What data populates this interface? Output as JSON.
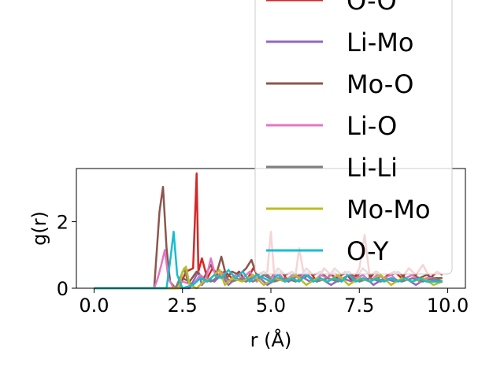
{
  "chart_data": {
    "type": "line",
    "xlabel": "r (Å)",
    "ylabel": "g(r)",
    "xlim": [
      -0.5,
      10.5
    ],
    "ylim": [
      0,
      3.6
    ],
    "xticks": [
      0.0,
      2.5,
      5.0,
      7.5,
      10.0
    ],
    "xtick_labels": [
      "0.0",
      "2.5",
      "5.0",
      "7.5",
      "10.0"
    ],
    "yticks": [
      0,
      2
    ],
    "ytick_labels": [
      "0",
      "2"
    ],
    "grid": false,
    "legend_placement": "upper-right (overflowing above axes)",
    "series": [
      {
        "name": "O-O",
        "color": "#d62728",
        "x": [
          0.0,
          1.8,
          2.0,
          2.2,
          2.4,
          2.6,
          2.8,
          2.9,
          2.95,
          3.05,
          3.2,
          3.35,
          3.5,
          3.7,
          3.9,
          4.1,
          4.3,
          4.5,
          4.7,
          4.9,
          5.0,
          5.1,
          5.3,
          5.5,
          5.7,
          5.8,
          5.95,
          6.1,
          6.3,
          6.5,
          6.7,
          6.9,
          7.1,
          7.3,
          7.5,
          7.65,
          7.8,
          7.95,
          8.1,
          8.3,
          8.5,
          8.7,
          8.9,
          9.1,
          9.3,
          9.5,
          9.7,
          9.85
        ],
        "y": [
          0.0,
          0.0,
          0.0,
          0.0,
          0.0,
          0.5,
          0.6,
          3.45,
          0.5,
          0.9,
          0.3,
          0.6,
          0.4,
          0.5,
          0.3,
          0.5,
          0.2,
          0.6,
          0.3,
          0.5,
          1.7,
          0.3,
          0.5,
          0.2,
          0.4,
          1.2,
          0.3,
          0.5,
          0.2,
          0.6,
          0.4,
          0.3,
          0.5,
          0.2,
          0.6,
          1.6,
          0.3,
          0.5,
          0.2,
          0.4,
          0.5,
          0.3,
          0.6,
          0.4,
          0.7,
          0.3,
          0.5,
          0.4
        ]
      },
      {
        "name": "Li-Mo",
        "color": "#9467bd",
        "x": [
          0.0,
          2.7,
          2.85,
          2.95,
          3.05,
          3.2,
          3.4,
          3.6,
          3.8,
          4.0,
          4.3,
          4.6,
          4.9,
          5.2,
          5.5,
          5.8,
          6.1,
          6.4,
          6.7,
          7.0,
          7.3,
          7.6,
          7.9,
          8.2,
          8.5,
          8.8,
          9.1,
          9.4,
          9.7,
          9.85
        ],
        "y": [
          0.0,
          0.0,
          0.3,
          0.5,
          0.1,
          0.3,
          0.2,
          0.4,
          0.1,
          0.3,
          0.2,
          0.4,
          0.1,
          0.3,
          0.2,
          0.4,
          0.2,
          0.3,
          0.1,
          0.3,
          0.2,
          0.4,
          0.1,
          0.3,
          0.2,
          0.3,
          0.1,
          0.3,
          0.2,
          0.2
        ]
      },
      {
        "name": "Mo-O",
        "color": "#8c564b",
        "x": [
          0.0,
          1.7,
          1.85,
          1.95,
          2.05,
          2.15,
          2.3,
          2.5,
          2.7,
          2.9,
          3.1,
          3.3,
          3.45,
          3.6,
          3.75,
          3.9,
          4.1,
          4.3,
          4.45,
          4.6,
          4.8,
          5.0,
          5.2,
          5.4,
          5.6,
          5.8,
          6.0,
          6.2,
          6.4,
          6.6,
          6.8,
          7.0,
          7.2,
          7.4,
          7.6,
          7.8,
          8.0,
          8.2,
          8.4,
          8.6,
          8.8,
          9.0,
          9.2,
          9.4,
          9.6,
          9.85
        ],
        "y": [
          0.0,
          0.0,
          2.3,
          3.05,
          1.2,
          0.2,
          0.0,
          0.3,
          0.2,
          0.5,
          0.3,
          0.7,
          0.4,
          0.95,
          0.3,
          0.5,
          0.4,
          0.6,
          0.85,
          0.4,
          0.5,
          0.3,
          0.6,
          0.4,
          0.5,
          0.3,
          0.6,
          0.4,
          0.5,
          0.3,
          0.6,
          0.4,
          0.5,
          0.3,
          0.6,
          0.4,
          0.5,
          0.3,
          0.4,
          0.5,
          0.3,
          0.4,
          0.3,
          0.4,
          0.3,
          0.3
        ]
      },
      {
        "name": "Li-O",
        "color": "#e377c2",
        "x": [
          0.0,
          1.7,
          1.8,
          1.9,
          2.0,
          2.1,
          2.25,
          2.5,
          2.8,
          3.0,
          3.15,
          3.3,
          3.45,
          3.6,
          3.8,
          4.0,
          4.2,
          4.4,
          4.6,
          4.8,
          5.0,
          5.2,
          5.4,
          5.6,
          5.8,
          6.0,
          6.2,
          6.4,
          6.6,
          6.8,
          7.0,
          7.2,
          7.4,
          7.6,
          7.8,
          8.0,
          8.2,
          8.4,
          8.6,
          8.8,
          9.0,
          9.2,
          9.4,
          9.6,
          9.85
        ],
        "y": [
          0.0,
          0.0,
          0.3,
          0.7,
          1.15,
          0.3,
          0.0,
          0.2,
          0.1,
          0.4,
          0.2,
          0.9,
          0.3,
          0.5,
          0.2,
          0.4,
          0.3,
          0.5,
          0.2,
          0.4,
          0.3,
          0.5,
          0.2,
          0.4,
          0.3,
          0.5,
          0.2,
          0.4,
          0.3,
          0.5,
          0.2,
          0.4,
          0.3,
          0.4,
          0.2,
          0.4,
          0.3,
          0.4,
          0.2,
          0.3,
          0.4,
          0.2,
          0.3,
          0.3,
          0.2
        ]
      },
      {
        "name": "Li-Li",
        "color": "#7f7f7f",
        "x": [
          0.0,
          2.3,
          2.45,
          2.55,
          2.65,
          2.8,
          3.0,
          3.3,
          3.6,
          3.9,
          4.2,
          4.5,
          4.8,
          5.1,
          5.4,
          5.7,
          6.0,
          6.3,
          6.6,
          6.9,
          7.2,
          7.5,
          7.8,
          8.1,
          8.4,
          8.7,
          9.0,
          9.3,
          9.6,
          9.85
        ],
        "y": [
          0.0,
          0.0,
          0.35,
          0.6,
          0.2,
          0.1,
          0.3,
          0.2,
          0.4,
          0.2,
          0.3,
          0.2,
          0.4,
          0.2,
          0.3,
          0.2,
          0.4,
          0.2,
          0.3,
          0.2,
          0.4,
          0.2,
          0.3,
          0.2,
          0.3,
          0.2,
          0.3,
          0.2,
          0.3,
          0.2
        ]
      },
      {
        "name": "Mo-Mo",
        "color": "#bcbd22",
        "x": [
          0.0,
          2.4,
          2.5,
          2.6,
          2.7,
          2.9,
          3.1,
          3.3,
          3.55,
          3.7,
          3.9,
          4.2,
          4.5,
          4.8,
          5.1,
          5.4,
          5.7,
          6.0,
          6.3,
          6.6,
          6.9,
          7.2,
          7.5,
          7.8,
          8.1,
          8.4,
          8.7,
          9.0,
          9.3,
          9.6,
          9.85
        ],
        "y": [
          0.0,
          0.0,
          0.5,
          0.65,
          0.1,
          0.0,
          0.2,
          0.3,
          0.55,
          0.1,
          0.3,
          0.2,
          0.4,
          0.1,
          0.3,
          0.2,
          0.4,
          0.1,
          0.3,
          0.2,
          0.4,
          0.1,
          0.3,
          0.2,
          0.4,
          0.1,
          0.3,
          0.2,
          0.3,
          0.1,
          0.2
        ]
      },
      {
        "name": "O-Y",
        "color": "#17becf",
        "x": [
          0.0,
          2.05,
          2.15,
          2.25,
          2.35,
          2.5,
          2.8,
          3.0,
          3.2,
          3.4,
          3.6,
          3.8,
          4.0,
          4.2,
          4.4,
          4.6,
          4.8,
          5.0,
          5.2,
          5.4,
          5.6,
          5.8,
          6.0,
          6.2,
          6.4,
          6.6,
          6.8,
          7.0,
          7.2,
          7.4,
          7.6,
          7.8,
          8.0,
          8.2,
          8.4,
          8.6,
          8.8,
          9.0,
          9.2,
          9.4,
          9.6,
          9.85
        ],
        "y": [
          0.0,
          0.0,
          0.8,
          1.7,
          0.4,
          0.0,
          0.1,
          0.3,
          0.2,
          0.4,
          0.3,
          0.55,
          0.3,
          0.5,
          0.2,
          0.4,
          0.3,
          0.2,
          0.4,
          0.2,
          0.3,
          0.2,
          0.4,
          0.2,
          0.3,
          0.2,
          0.3,
          0.2,
          0.4,
          0.2,
          0.3,
          0.2,
          0.3,
          0.2,
          0.3,
          0.2,
          0.3,
          0.2,
          0.3,
          0.2,
          0.2,
          0.2
        ]
      }
    ]
  }
}
